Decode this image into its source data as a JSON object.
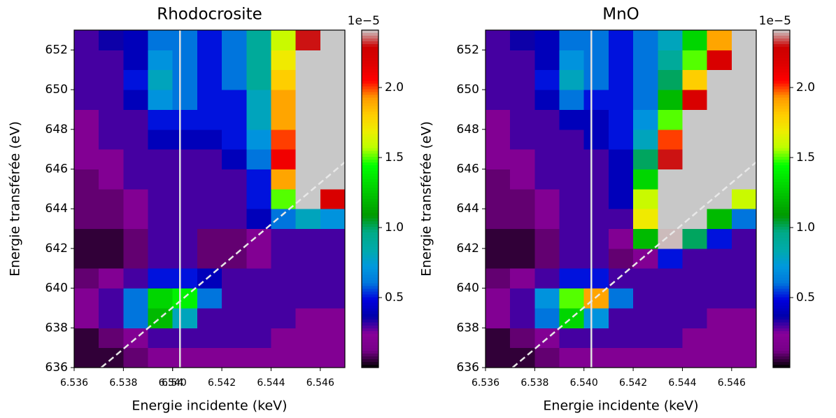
{
  "chart_data": [
    {
      "type": "heatmap",
      "title": "Rhodocrosite",
      "xlabel": "Energie incidente (keV)",
      "ylabel": "Energie transférée (eV)",
      "xlim": [
        6.536,
        6.547
      ],
      "ylim": [
        636,
        653
      ],
      "xticks": [
        6.536,
        6.538,
        6.54,
        {
          "value": 6.54,
          "label": "6.540"
        },
        6.542,
        6.544,
        6.546
      ],
      "yticks": [
        636,
        638,
        640,
        642,
        644,
        646,
        648,
        650,
        652
      ],
      "x": [
        6.5365,
        6.5375,
        6.5385,
        6.5395,
        6.5405,
        6.5415,
        6.5425,
        6.5435,
        6.5445,
        6.5455,
        6.5465
      ],
      "y": [
        636.5,
        637.5,
        638.5,
        639.5,
        640.5,
        641.5,
        642.5,
        643.5,
        644.5,
        645.5,
        646.5,
        647.5,
        648.5,
        649.5,
        650.5,
        651.5,
        652.5
      ],
      "z": [
        [
          0.05,
          0.05,
          0.1,
          0.2,
          0.2,
          0.2,
          0.2,
          0.2,
          0.2,
          0.2,
          0.2
        ],
        [
          0.05,
          0.1,
          0.2,
          0.3,
          0.3,
          0.3,
          0.3,
          0.3,
          0.2,
          0.2,
          0.2
        ],
        [
          0.2,
          0.3,
          0.6,
          1.2,
          0.8,
          0.3,
          0.3,
          0.3,
          0.3,
          0.2,
          0.2
        ],
        [
          0.2,
          0.3,
          0.6,
          1.3,
          1.4,
          0.6,
          0.3,
          0.3,
          0.3,
          0.3,
          0.3
        ],
        [
          0.1,
          0.2,
          0.3,
          0.5,
          0.5,
          0.4,
          0.3,
          0.3,
          0.3,
          0.3,
          0.3
        ],
        [
          0.05,
          0.05,
          0.1,
          0.3,
          0.3,
          0.1,
          0.1,
          0.2,
          0.3,
          0.3,
          0.3
        ],
        [
          0.05,
          0.05,
          0.1,
          0.3,
          0.3,
          0.1,
          0.1,
          0.2,
          0.3,
          0.3,
          0.3
        ],
        [
          0.1,
          0.1,
          0.2,
          0.3,
          0.3,
          0.3,
          0.3,
          0.4,
          0.6,
          0.8,
          0.7
        ],
        [
          0.1,
          0.1,
          0.2,
          0.3,
          0.3,
          0.3,
          0.3,
          0.5,
          1.5,
          3,
          2.2
        ],
        [
          0.1,
          0.2,
          0.3,
          0.3,
          0.3,
          0.3,
          0.3,
          0.5,
          1.9,
          3,
          3
        ],
        [
          0.2,
          0.2,
          0.3,
          0.3,
          0.3,
          0.3,
          0.4,
          0.6,
          2.1,
          3,
          3
        ],
        [
          0.2,
          0.3,
          0.3,
          0.4,
          0.4,
          0.4,
          0.5,
          0.7,
          2.0,
          3,
          3
        ],
        [
          0.2,
          0.3,
          0.3,
          0.5,
          0.5,
          0.5,
          0.5,
          0.8,
          1.9,
          3,
          3
        ],
        [
          0.3,
          0.3,
          0.4,
          0.7,
          0.6,
          0.5,
          0.5,
          0.8,
          1.9,
          3,
          3
        ],
        [
          0.3,
          0.3,
          0.5,
          0.8,
          0.6,
          0.5,
          0.6,
          0.9,
          1.8,
          3,
          3
        ],
        [
          0.3,
          0.3,
          0.4,
          0.7,
          0.6,
          0.5,
          0.6,
          0.9,
          1.7,
          2.5,
          3
        ],
        [
          0.3,
          0.35,
          0.4,
          0.6,
          0.6,
          0.5,
          0.6,
          0.9,
          1.6,
          2.3,
          3
        ]
      ],
      "colormap": "nipy_spectral",
      "over_color": "#c8c8c8",
      "clim": [
        0,
        2.41
      ],
      "cticks": [
        0.5,
        {
          "value": 1,
          "label": "1.0"
        },
        1.5,
        {
          "value": 2,
          "label": "2.0"
        }
      ],
      "offset_label": "1e−5",
      "vline": 6.5403,
      "vline_color": "#e0e0e0",
      "diagonal": {
        "x": [
          6.5371,
          6.547
        ],
        "y": [
          636,
          646.35
        ],
        "color": "#e8e8e8"
      }
    },
    {
      "type": "heatmap",
      "title": "MnO",
      "xlabel": "Energie incidente (keV)",
      "ylabel": "Energie transférée (eV)",
      "xlim": [
        6.536,
        6.547
      ],
      "ylim": [
        636,
        653
      ],
      "xticks": [
        6.536,
        6.538,
        {
          "value": 6.54,
          "label": "6.540"
        },
        6.542,
        6.544,
        6.546
      ],
      "yticks": [
        636,
        638,
        640,
        642,
        644,
        646,
        648,
        650,
        652
      ],
      "x": [
        6.5365,
        6.5375,
        6.5385,
        6.5395,
        6.5405,
        6.5415,
        6.5425,
        6.5435,
        6.5445,
        6.5455,
        6.5465
      ],
      "y": [
        636.5,
        637.5,
        638.5,
        639.5,
        640.5,
        641.5,
        642.5,
        643.5,
        644.5,
        645.5,
        646.5,
        647.5,
        648.5,
        649.5,
        650.5,
        651.5,
        652.5
      ],
      "z": [
        [
          0.05,
          0.05,
          0.1,
          0.2,
          0.2,
          0.2,
          0.2,
          0.2,
          0.2,
          0.2,
          0.2
        ],
        [
          0.05,
          0.1,
          0.2,
          0.3,
          0.3,
          0.3,
          0.3,
          0.3,
          0.2,
          0.2,
          0.2
        ],
        [
          0.2,
          0.3,
          0.6,
          1.3,
          0.7,
          0.3,
          0.3,
          0.3,
          0.3,
          0.2,
          0.2
        ],
        [
          0.2,
          0.3,
          0.7,
          1.5,
          1.9,
          0.6,
          0.3,
          0.3,
          0.3,
          0.3,
          0.3
        ],
        [
          0.1,
          0.2,
          0.3,
          0.5,
          0.5,
          0.3,
          0.3,
          0.3,
          0.3,
          0.3,
          0.3
        ],
        [
          0.05,
          0.05,
          0.1,
          0.3,
          0.3,
          0.1,
          0.2,
          0.5,
          0.3,
          0.3,
          0.3
        ],
        [
          0.05,
          0.05,
          0.1,
          0.3,
          0.3,
          0.2,
          1.2,
          2.4,
          1.0,
          0.5,
          0.3
        ],
        [
          0.1,
          0.1,
          0.2,
          0.3,
          0.3,
          0.3,
          1.7,
          3,
          3,
          1.2,
          0.6
        ],
        [
          0.1,
          0.1,
          0.2,
          0.3,
          0.3,
          0.4,
          1.6,
          3,
          3,
          3,
          1.6
        ],
        [
          0.1,
          0.2,
          0.3,
          0.3,
          0.3,
          0.4,
          1.3,
          3,
          3,
          3,
          3
        ],
        [
          0.2,
          0.2,
          0.3,
          0.3,
          0.3,
          0.4,
          1.0,
          2.3,
          3,
          3,
          3
        ],
        [
          0.2,
          0.3,
          0.3,
          0.3,
          0.4,
          0.5,
          0.8,
          2.0,
          3,
          3,
          3
        ],
        [
          0.2,
          0.3,
          0.3,
          0.4,
          0.4,
          0.5,
          0.7,
          1.5,
          3,
          3,
          3
        ],
        [
          0.3,
          0.3,
          0.4,
          0.6,
          0.5,
          0.5,
          0.6,
          1.2,
          2.2,
          3,
          3
        ],
        [
          0.3,
          0.3,
          0.5,
          0.8,
          0.6,
          0.5,
          0.6,
          1.0,
          1.8,
          3,
          3
        ],
        [
          0.3,
          0.3,
          0.4,
          0.7,
          0.6,
          0.5,
          0.6,
          0.9,
          1.5,
          2.2,
          3
        ],
        [
          0.3,
          0.35,
          0.4,
          0.6,
          0.6,
          0.5,
          0.6,
          0.8,
          1.3,
          1.9,
          3
        ]
      ],
      "colormap": "nipy_spectral",
      "over_color": "#c8c8c8",
      "clim": [
        0,
        2.41
      ],
      "cticks": [
        0.5,
        {
          "value": 1,
          "label": "1.0"
        },
        1.5,
        {
          "value": 2,
          "label": "2.0"
        }
      ],
      "offset_label": "1e−5",
      "vline": 6.5403,
      "vline_color": "#e0e0e0",
      "diagonal": {
        "x": [
          6.5371,
          6.547
        ],
        "y": [
          636,
          646.35
        ],
        "color": "#e8e8e8"
      }
    }
  ]
}
